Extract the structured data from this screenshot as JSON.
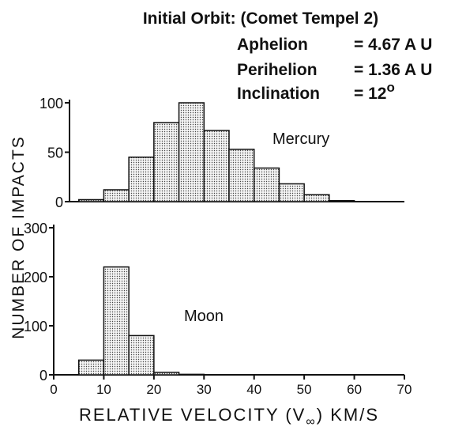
{
  "chart_data": [
    {
      "type": "histogram",
      "title": "Initial Orbit: (Comet Tempel 2)",
      "annotations": [
        {
          "label": "Aphelion",
          "value": "= 4.67 A U"
        },
        {
          "label": "Perihelion",
          "value": "= 1.36 A U"
        },
        {
          "label": "Inclination",
          "value": "= 12",
          "sup": "o"
        }
      ],
      "ylabel": "NUMBER OF IMPACTS",
      "label": "Mercury",
      "bins": [
        5,
        10,
        15,
        20,
        25,
        30,
        35,
        40,
        45,
        50,
        55,
        60
      ],
      "values": [
        2,
        12,
        45,
        80,
        100,
        72,
        53,
        34,
        18,
        7,
        1
      ],
      "xlim": [
        0,
        70
      ],
      "ylim": [
        0,
        100
      ],
      "yticks": [
        0,
        50,
        100
      ]
    },
    {
      "type": "histogram",
      "label": "Moon",
      "xlabel": {
        "text": "RELATIVE VELOCITY (V",
        "sub": "∞",
        "after": ") KM/S"
      },
      "bins": [
        5,
        10,
        15,
        20,
        25,
        30
      ],
      "values": [
        30,
        220,
        80,
        5,
        1
      ],
      "xlim": [
        0,
        70
      ],
      "xticks": [
        0,
        10,
        20,
        30,
        40,
        50,
        60,
        70
      ],
      "ylim": [
        0,
        300
      ],
      "yticks": [
        0,
        100,
        200,
        300
      ]
    }
  ]
}
